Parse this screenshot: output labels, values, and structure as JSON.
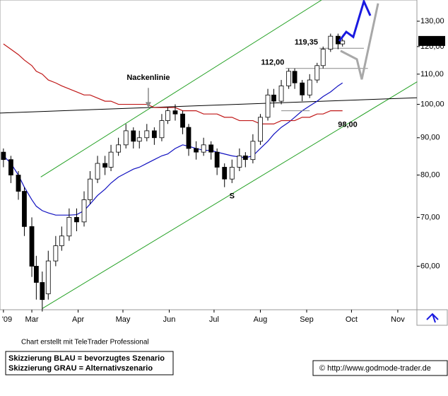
{
  "chart_data": {
    "type": "candlestick",
    "log_scale": true,
    "xlim": [
      38.7,
      317.8
    ],
    "ylim": [
      52.3,
      139
    ],
    "xticks": [
      {
        "value": 41,
        "label": "'09"
      },
      {
        "value": 60,
        "label": "Mar"
      },
      {
        "value": 91,
        "label": "Apr"
      },
      {
        "value": 121,
        "label": "May"
      },
      {
        "value": 152,
        "label": "Jun"
      },
      {
        "value": 182,
        "label": "Jul"
      },
      {
        "value": 213,
        "label": "Aug"
      },
      {
        "value": 244,
        "label": "Sep"
      },
      {
        "value": 274,
        "label": "Oct"
      },
      {
        "value": 305,
        "label": "Nov"
      }
    ],
    "yticks": [
      {
        "value": 60,
        "label": "60,00"
      },
      {
        "value": 70,
        "label": "70,00"
      },
      {
        "value": 80,
        "label": "80,00"
      },
      {
        "value": 90,
        "label": "90,00"
      },
      {
        "value": 100,
        "label": "100,00"
      },
      {
        "value": 110,
        "label": "110,00"
      },
      {
        "value": 120,
        "label": "120,00"
      },
      {
        "value": 130,
        "label": "130,00"
      }
    ],
    "x": [
      41,
      46,
      51,
      55,
      60,
      63,
      67,
      71,
      76,
      80,
      85,
      90,
      95,
      99,
      104,
      109,
      113,
      118,
      123,
      128,
      132,
      137,
      142,
      147,
      151,
      156,
      161,
      165,
      170,
      175,
      180,
      184,
      189,
      194,
      199,
      203,
      208,
      213,
      218,
      222,
      227,
      232,
      236,
      241,
      246,
      251,
      255,
      260,
      265,
      268
    ],
    "open": [
      86,
      84,
      80,
      76,
      68,
      60,
      57,
      55,
      61,
      64,
      66,
      70,
      69,
      74,
      79,
      83,
      82,
      86,
      88,
      92,
      89,
      90,
      92,
      90,
      95,
      98,
      97,
      93,
      87,
      86,
      88,
      86,
      82,
      79,
      82,
      85,
      84,
      89,
      96,
      103,
      101,
      106,
      111,
      107,
      103,
      108,
      113,
      119,
      124,
      121
    ],
    "high": [
      87,
      85,
      81,
      77,
      70,
      62,
      59,
      63,
      66,
      68,
      72,
      72,
      76,
      81,
      85,
      85,
      88,
      90,
      94,
      93,
      92,
      94,
      93,
      97,
      99,
      100,
      98,
      94,
      89,
      90,
      89,
      87,
      83,
      84,
      87,
      86,
      91,
      97,
      105,
      105,
      108,
      112,
      112,
      108,
      110,
      114,
      120,
      125,
      125,
      123
    ],
    "low": [
      82,
      78,
      74,
      66,
      58,
      54,
      52,
      54,
      60,
      63,
      65,
      67,
      68,
      73,
      78,
      80,
      81,
      85,
      87,
      87,
      87,
      89,
      88,
      89,
      94,
      95,
      91,
      85,
      84,
      85,
      84,
      80,
      77,
      78,
      81,
      82,
      83,
      88,
      95,
      99,
      100,
      105,
      105,
      101,
      102,
      107,
      112,
      118,
      119,
      120
    ],
    "close": [
      84,
      80,
      76,
      68,
      60,
      57,
      54,
      61,
      64,
      66,
      70,
      69,
      74,
      79,
      83,
      82,
      86,
      88,
      92,
      89,
      90,
      92,
      90,
      95,
      98,
      97,
      93,
      87,
      86,
      88,
      86,
      82,
      79,
      82,
      85,
      84,
      89,
      96,
      103,
      101,
      106,
      111,
      107,
      103,
      108,
      113,
      119,
      124,
      121,
      122.15
    ],
    "last_price": {
      "value": 122.15,
      "label": "122,15"
    },
    "moving_averages": [
      {
        "color": "#1010c0",
        "values": [
          85,
          83,
          80,
          77,
          74,
          72.5,
          71.5,
          71,
          70.5,
          70.5,
          70.5,
          70.6,
          71.5,
          73,
          75,
          76.5,
          78,
          79.5,
          80.5,
          81.5,
          82,
          83,
          84,
          85,
          85.5,
          87,
          88,
          87.6,
          87,
          86.5,
          86.5,
          86,
          85.5,
          85,
          84.7,
          84.5,
          85,
          87,
          89,
          91,
          93,
          94.5,
          96,
          98,
          99.5,
          101,
          102.5,
          104,
          106,
          107
        ]
      },
      {
        "color": "#c01818",
        "values": [
          121,
          119,
          117,
          115,
          113,
          111,
          110,
          108,
          107,
          106,
          105,
          104,
          103,
          103,
          102,
          101,
          101,
          100,
          100,
          100,
          100,
          100,
          99,
          99,
          99,
          99,
          98,
          98,
          98,
          97,
          97,
          97,
          96,
          96,
          95,
          95,
          95,
          94,
          94,
          94,
          95,
          95,
          95,
          96,
          96,
          97,
          97,
          98,
          98,
          98
        ]
      }
    ],
    "trend_lines": [
      {
        "color": "#22a022",
        "x": [
          66,
          254
        ],
        "values": [
          79.5,
          139
        ]
      },
      {
        "color": "#22a022",
        "x": [
          67,
          318
        ],
        "values": [
          52.5,
          107.4
        ]
      },
      {
        "color": "#000000",
        "x": [
          38.7,
          317.8
        ],
        "values": [
          97.3,
          102.1
        ]
      }
    ],
    "levels": [
      {
        "label": "112,00",
        "value": 112,
        "x": [
          230,
          285
        ],
        "label_position": "left"
      },
      {
        "label": "119,35",
        "value": 119.35,
        "x": [
          252.5,
          282.3
        ],
        "label_position": "left"
      },
      {
        "label": "98,00",
        "value": 98,
        "x": [
          227,
          246
        ],
        "label_position": "right"
      }
    ],
    "annotations": [
      {
        "text": "Nackenlinie",
        "x": 138,
        "value": 98.5
      },
      {
        "text": "S",
        "x": 194,
        "value": 74.8
      }
    ],
    "scenarios": [
      {
        "color": "#1a1ae0",
        "x": [
          265.8,
          270.5,
          275.2,
          282.3,
          286.6
        ],
        "values": [
          122.1,
          125.7,
          123.7,
          138.4,
          132.3
        ]
      },
      {
        "color": "#a8a8a8",
        "x": [
          266.7,
          277.6,
          280.9,
          291.8
        ],
        "values": [
          118.4,
          115.3,
          108.2,
          137.5
        ]
      }
    ],
    "credit": "Chart erstellt mit TeleTrader Professional",
    "legend_lines": [
      "Skizzierung BLAU = bevorzugtes Szenario",
      "Skizzierung GRAU = Alternativszenario"
    ],
    "source": "© http://www.godmode-trader.de"
  }
}
